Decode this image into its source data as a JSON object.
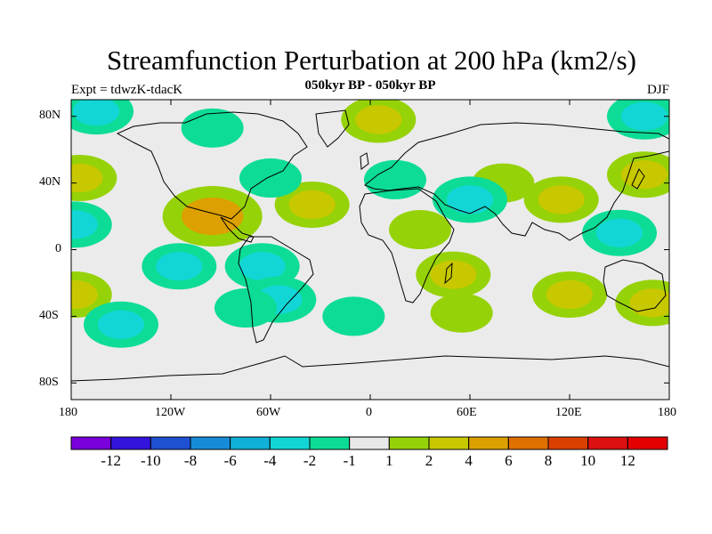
{
  "header": {
    "title": "Streamfunction Perturbation at 200 hPa (km2/s)",
    "subtitle": "050kyr BP - 050kyr BP",
    "left_label": "Expt = tdwzK-tdacK",
    "right_label": "DJF"
  },
  "map": {
    "projection": "cylindrical-equidistant",
    "background_color": "#ebebeb",
    "lat_tick_labels": [
      "80N",
      "40N",
      "0",
      "40S",
      "80S"
    ],
    "lon_tick_labels": [
      "180",
      "120W",
      "60W",
      "0",
      "60E",
      "120E",
      "180"
    ]
  },
  "chart_data": {
    "type": "heatmap",
    "title": "Streamfunction Perturbation at 200 hPa (km2/s)",
    "units": "km2/s",
    "season": "DJF",
    "x_range_degrees_east": [
      -180,
      180
    ],
    "y_range_degrees_north": [
      -90,
      90
    ],
    "colorbar": {
      "labels": [
        "-12",
        "-10",
        "-8",
        "-6",
        "-4",
        "-2",
        "-1",
        "1",
        "2",
        "4",
        "6",
        "8",
        "10",
        "12"
      ],
      "colors": [
        "#7a00dc",
        "#3214dc",
        "#1e50d2",
        "#168cd8",
        "#10b0d8",
        "#12d6d6",
        "#0ddc96",
        "#e8e8e8",
        "#96d208",
        "#c8c800",
        "#dca000",
        "#e07000",
        "#dc4000",
        "#dc1010",
        "#e40000"
      ]
    },
    "anomaly_centers": [
      {
        "lon": -175,
        "lat": 43,
        "level": 2
      },
      {
        "lon": -178,
        "lat": 15,
        "level": -2
      },
      {
        "lon": -178,
        "lat": -27,
        "level": 2
      },
      {
        "lon": -165,
        "lat": 83,
        "level": -2
      },
      {
        "lon": -150,
        "lat": -45,
        "level": -2
      },
      {
        "lon": -95,
        "lat": 20,
        "level": 4
      },
      {
        "lon": -115,
        "lat": -10,
        "level": -2
      },
      {
        "lon": -95,
        "lat": 73,
        "level": -1
      },
      {
        "lon": -35,
        "lat": 27,
        "level": 2
      },
      {
        "lon": -60,
        "lat": 43,
        "level": -1
      },
      {
        "lon": -65,
        "lat": -10,
        "level": -2
      },
      {
        "lon": -55,
        "lat": -30,
        "level": -2
      },
      {
        "lon": -75,
        "lat": -35,
        "level": -1
      },
      {
        "lon": -10,
        "lat": -40,
        "level": -1
      },
      {
        "lon": 5,
        "lat": 78,
        "level": 2
      },
      {
        "lon": 15,
        "lat": 42,
        "level": -1
      },
      {
        "lon": 30,
        "lat": 12,
        "level": 1
      },
      {
        "lon": 50,
        "lat": -15,
        "level": 2
      },
      {
        "lon": 55,
        "lat": -38,
        "level": 1
      },
      {
        "lon": 80,
        "lat": 40,
        "level": 1
      },
      {
        "lon": 60,
        "lat": 30,
        "level": -2
      },
      {
        "lon": 115,
        "lat": 30,
        "level": 2
      },
      {
        "lon": 150,
        "lat": 10,
        "level": -2
      },
      {
        "lon": 165,
        "lat": 80,
        "level": -2
      },
      {
        "lon": 165,
        "lat": 45,
        "level": 2
      },
      {
        "lon": 120,
        "lat": -27,
        "level": 2
      },
      {
        "lon": 170,
        "lat": -32,
        "level": 2
      }
    ]
  }
}
